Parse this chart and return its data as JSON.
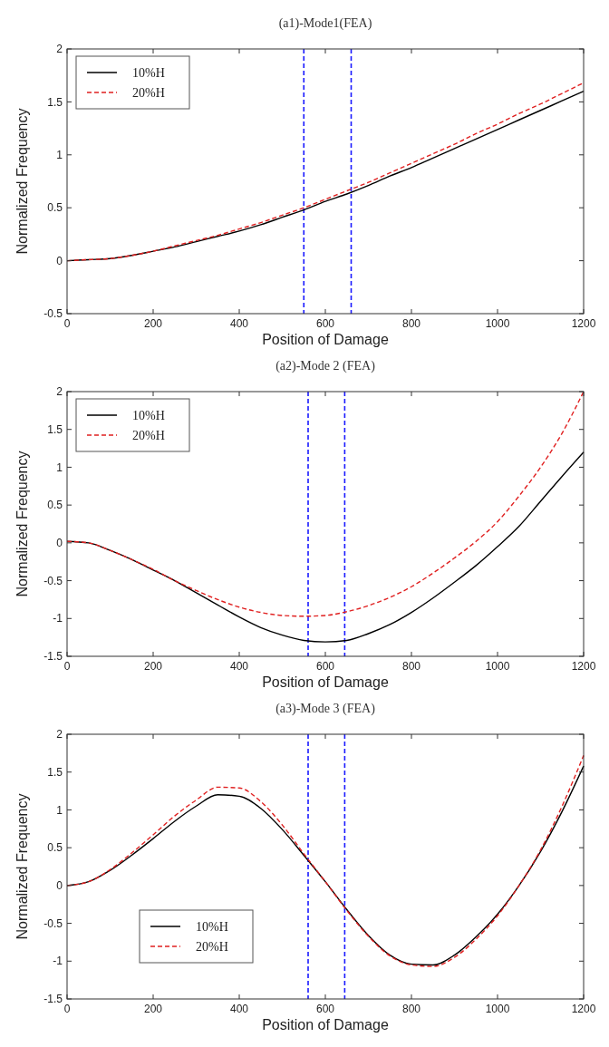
{
  "chart_data": [
    {
      "type": "line",
      "title": "(a1)-Mode1(FEA)",
      "xlabel": "Position of Damage",
      "ylabel": "Normalized Frequency",
      "x": [
        0,
        50,
        100,
        150,
        200,
        250,
        300,
        350,
        400,
        450,
        500,
        550,
        600,
        650,
        700,
        750,
        800,
        850,
        900,
        950,
        1000,
        1050,
        1100,
        1150,
        1200
      ],
      "xlim": [
        0,
        1200
      ],
      "xticks": [
        0,
        200,
        400,
        600,
        800,
        1000,
        1200
      ],
      "ylim": [
        -0.5,
        2
      ],
      "yticks": [
        -0.5,
        0,
        0.5,
        1,
        1.5,
        2
      ],
      "grid": false,
      "legend": "top left",
      "marker": "none",
      "series": [
        {
          "name": "10%H",
          "color": "#000000",
          "line_style": "solid",
          "values": [
            0,
            0.01,
            0.02,
            0.05,
            0.09,
            0.13,
            0.18,
            0.23,
            0.28,
            0.34,
            0.41,
            0.48,
            0.56,
            0.63,
            0.71,
            0.8,
            0.88,
            0.97,
            1.06,
            1.15,
            1.24,
            1.33,
            1.42,
            1.51,
            1.6
          ]
        },
        {
          "name": "20%H",
          "color": "#e02020",
          "line_style": "dashed",
          "values": [
            0,
            0.01,
            0.02,
            0.05,
            0.09,
            0.14,
            0.19,
            0.24,
            0.3,
            0.36,
            0.43,
            0.5,
            0.58,
            0.66,
            0.74,
            0.83,
            0.92,
            1.01,
            1.1,
            1.2,
            1.29,
            1.39,
            1.48,
            1.58,
            1.68
          ]
        }
      ],
      "ref_lines": [
        {
          "axis": "x",
          "value": 550,
          "color": "#1a1aff",
          "line_style": "dashed"
        },
        {
          "axis": "x",
          "value": 660,
          "color": "#1a1aff",
          "line_style": "dashed"
        }
      ]
    },
    {
      "type": "line",
      "title": "(a2)-Mode 2 (FEA)",
      "xlabel": "Position of Damage",
      "ylabel": "Normalized Frequency",
      "x": [
        0,
        50,
        100,
        150,
        200,
        250,
        300,
        350,
        400,
        450,
        500,
        550,
        600,
        650,
        700,
        750,
        800,
        850,
        900,
        950,
        1000,
        1050,
        1100,
        1150,
        1200
      ],
      "xlim": [
        0,
        1200
      ],
      "xticks": [
        0,
        200,
        400,
        600,
        800,
        1000,
        1200
      ],
      "ylim": [
        -1.5,
        2
      ],
      "yticks": [
        -1.5,
        -1,
        -0.5,
        0,
        0.5,
        1,
        1.5,
        2
      ],
      "grid": false,
      "legend": "top left",
      "marker": "none",
      "series": [
        {
          "name": "10%H",
          "color": "#000000",
          "line_style": "solid",
          "values": [
            0.02,
            0,
            -0.1,
            -0.22,
            -0.36,
            -0.5,
            -0.66,
            -0.82,
            -0.98,
            -1.12,
            -1.22,
            -1.29,
            -1.31,
            -1.29,
            -1.2,
            -1.08,
            -0.92,
            -0.73,
            -0.52,
            -0.3,
            -0.05,
            0.22,
            0.55,
            0.88,
            1.2
          ]
        },
        {
          "name": "20%H",
          "color": "#e02020",
          "line_style": "dashed",
          "values": [
            0.02,
            0,
            -0.1,
            -0.22,
            -0.35,
            -0.5,
            -0.63,
            -0.75,
            -0.85,
            -0.92,
            -0.96,
            -0.97,
            -0.96,
            -0.91,
            -0.83,
            -0.72,
            -0.58,
            -0.4,
            -0.2,
            0.02,
            0.28,
            0.62,
            1,
            1.45,
            2
          ]
        }
      ],
      "ref_lines": [
        {
          "axis": "x",
          "value": 560,
          "color": "#1a1aff",
          "line_style": "dashed"
        },
        {
          "axis": "x",
          "value": 645,
          "color": "#1a1aff",
          "line_style": "dashed"
        }
      ]
    },
    {
      "type": "line",
      "title": "(a3)-Mode 3 (FEA)",
      "xlabel": "Position of Damage",
      "ylabel": "Normalized Frequency",
      "x": [
        0,
        50,
        100,
        150,
        200,
        250,
        300,
        350,
        400,
        450,
        500,
        550,
        600,
        650,
        700,
        750,
        800,
        850,
        900,
        950,
        1000,
        1050,
        1100,
        1150,
        1200
      ],
      "xlim": [
        0,
        1200
      ],
      "xticks": [
        0,
        200,
        400,
        600,
        800,
        1000,
        1200
      ],
      "ylim": [
        -1.5,
        2
      ],
      "yticks": [
        -1.5,
        -1,
        -0.5,
        0,
        0.5,
        1,
        1.5,
        2
      ],
      "grid": false,
      "legend": "bottom left",
      "marker": "none",
      "series": [
        {
          "name": "10%H",
          "color": "#000000",
          "line_style": "solid",
          "values": [
            0,
            0.05,
            0.2,
            0.4,
            0.62,
            0.85,
            1.05,
            1.2,
            1.18,
            1.02,
            0.74,
            0.4,
            0.05,
            -0.32,
            -0.66,
            -0.92,
            -1.04,
            -1.05,
            -0.92,
            -0.68,
            -0.38,
            0,
            0.45,
            0.98,
            1.58
          ]
        },
        {
          "name": "20%H",
          "color": "#e02020",
          "line_style": "dashed",
          "values": [
            0,
            0.05,
            0.21,
            0.43,
            0.67,
            0.92,
            1.13,
            1.3,
            1.29,
            1.11,
            0.8,
            0.42,
            0.05,
            -0.33,
            -0.67,
            -0.93,
            -1.05,
            -1.07,
            -0.95,
            -0.71,
            -0.4,
            0,
            0.47,
            1.05,
            1.72
          ]
        }
      ],
      "ref_lines": [
        {
          "axis": "x",
          "value": 560,
          "color": "#1a1aff",
          "line_style": "dashed"
        },
        {
          "axis": "x",
          "value": 645,
          "color": "#1a1aff",
          "line_style": "dashed"
        }
      ]
    }
  ]
}
